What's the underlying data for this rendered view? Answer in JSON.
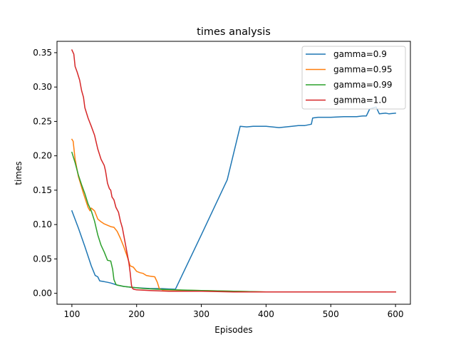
{
  "chart_data": {
    "type": "line",
    "title": "times analysis",
    "xlabel": "Episodes",
    "ylabel": "times",
    "xlim": [
      77,
      623
    ],
    "ylim": [
      -0.0159,
      0.3665
    ],
    "x_ticks": [
      100,
      200,
      300,
      400,
      500,
      600
    ],
    "x_tick_labels": [
      "100",
      "200",
      "300",
      "400",
      "500",
      "600"
    ],
    "y_ticks": [
      0.0,
      0.05,
      0.1,
      0.15,
      0.2,
      0.25,
      0.3,
      0.35
    ],
    "y_tick_labels": [
      "0.00",
      "0.05",
      "0.10",
      "0.15",
      "0.20",
      "0.25",
      "0.30",
      "0.35"
    ],
    "grid": false,
    "legend_position": "upper right",
    "series": [
      {
        "name": "gamma=0.9",
        "color": "#1f77b4",
        "x": [
          100,
          110,
          120,
          130,
          136,
          140,
          143,
          150,
          155,
          160,
          170,
          180,
          190,
          200,
          220,
          240,
          250,
          260,
          300,
          340,
          360,
          370,
          380,
          400,
          420,
          440,
          450,
          460,
          470,
          472,
          480,
          500,
          520,
          540,
          550,
          555,
          560,
          570,
          575,
          585,
          590,
          600
        ],
        "y": [
          0.12,
          0.095,
          0.068,
          0.04,
          0.026,
          0.024,
          0.018,
          0.017,
          0.016,
          0.015,
          0.012,
          0.01,
          0.009,
          0.008,
          0.007,
          0.0068,
          0.0063,
          0.006,
          0.085,
          0.165,
          0.243,
          0.242,
          0.243,
          0.243,
          0.241,
          0.243,
          0.244,
          0.244,
          0.246,
          0.255,
          0.256,
          0.256,
          0.257,
          0.257,
          0.258,
          0.258,
          0.268,
          0.271,
          0.261,
          0.262,
          0.261,
          0.262
        ]
      },
      {
        "name": "gamma=0.95",
        "color": "#ff7f0e",
        "x": [
          100,
          102,
          105,
          110,
          118,
          125,
          128,
          130,
          135,
          140,
          145,
          150,
          160,
          165,
          170,
          175,
          180,
          185,
          190,
          195,
          200,
          205,
          210,
          215,
          220,
          228,
          232,
          235,
          240,
          300,
          350,
          400,
          450,
          500,
          550,
          600
        ],
        "y": [
          0.224,
          0.221,
          0.195,
          0.17,
          0.145,
          0.125,
          0.12,
          0.124,
          0.12,
          0.108,
          0.104,
          0.101,
          0.097,
          0.096,
          0.09,
          0.08,
          0.068,
          0.055,
          0.04,
          0.038,
          0.032,
          0.03,
          0.029,
          0.026,
          0.025,
          0.024,
          0.016,
          0.007,
          0.005,
          0.004,
          0.003,
          0.002,
          0.002,
          0.002,
          0.002,
          0.002
        ]
      },
      {
        "name": "gamma=0.99",
        "color": "#2ca02c",
        "x": [
          100,
          105,
          110,
          115,
          120,
          125,
          130,
          135,
          140,
          145,
          150,
          155,
          160,
          163,
          165,
          168,
          170,
          175,
          180,
          190,
          200,
          210,
          230,
          260,
          300,
          350,
          400,
          450,
          500,
          550,
          600
        ],
        "y": [
          0.205,
          0.19,
          0.172,
          0.158,
          0.145,
          0.13,
          0.12,
          0.105,
          0.085,
          0.07,
          0.06,
          0.048,
          0.047,
          0.035,
          0.02,
          0.013,
          0.012,
          0.011,
          0.01,
          0.009,
          0.008,
          0.007,
          0.006,
          0.005,
          0.004,
          0.003,
          0.002,
          0.002,
          0.002,
          0.002,
          0.002
        ]
      },
      {
        "name": "gamma=1.0",
        "color": "#d62728",
        "x": [
          100,
          103,
          105,
          108,
          112,
          115,
          118,
          120,
          125,
          130,
          135,
          138,
          140,
          145,
          150,
          152,
          155,
          158,
          160,
          162,
          165,
          168,
          172,
          175,
          178,
          182,
          185,
          188,
          190,
          192,
          193,
          195,
          200,
          220,
          250,
          300,
          350,
          400,
          450,
          500,
          550,
          600
        ],
        "y": [
          0.354,
          0.348,
          0.33,
          0.322,
          0.31,
          0.295,
          0.285,
          0.27,
          0.255,
          0.243,
          0.23,
          0.218,
          0.21,
          0.195,
          0.186,
          0.178,
          0.16,
          0.152,
          0.15,
          0.14,
          0.136,
          0.125,
          0.118,
          0.105,
          0.095,
          0.075,
          0.06,
          0.045,
          0.03,
          0.012,
          0.008,
          0.006,
          0.005,
          0.004,
          0.003,
          0.003,
          0.002,
          0.002,
          0.002,
          0.002,
          0.002,
          0.002
        ]
      }
    ]
  }
}
